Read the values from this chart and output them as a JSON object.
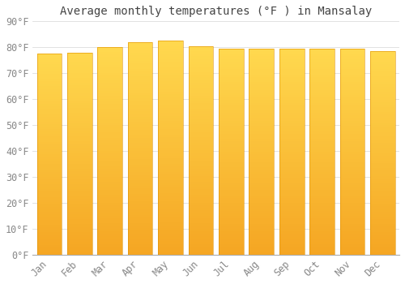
{
  "categories": [
    "Jan",
    "Feb",
    "Mar",
    "Apr",
    "May",
    "Jun",
    "Jul",
    "Aug",
    "Sep",
    "Oct",
    "Nov",
    "Dec"
  ],
  "values": [
    77.5,
    78.0,
    80.2,
    82.0,
    82.5,
    80.5,
    79.5,
    79.5,
    79.5,
    79.5,
    79.5,
    78.5
  ],
  "title": "Average monthly temperatures (°F ) in Mansalay",
  "bar_color_bottom": "#F5A623",
  "bar_color_top": "#FFD94F",
  "background_color": "#FFFFFF",
  "grid_color": "#DDDDDD",
  "ylim": [
    0,
    90
  ],
  "yticks": [
    0,
    10,
    20,
    30,
    40,
    50,
    60,
    70,
    80,
    90
  ],
  "title_fontsize": 10,
  "tick_fontsize": 8.5,
  "font_family": "monospace",
  "tick_color": "#888888",
  "title_color": "#444444",
  "bar_width": 0.82
}
